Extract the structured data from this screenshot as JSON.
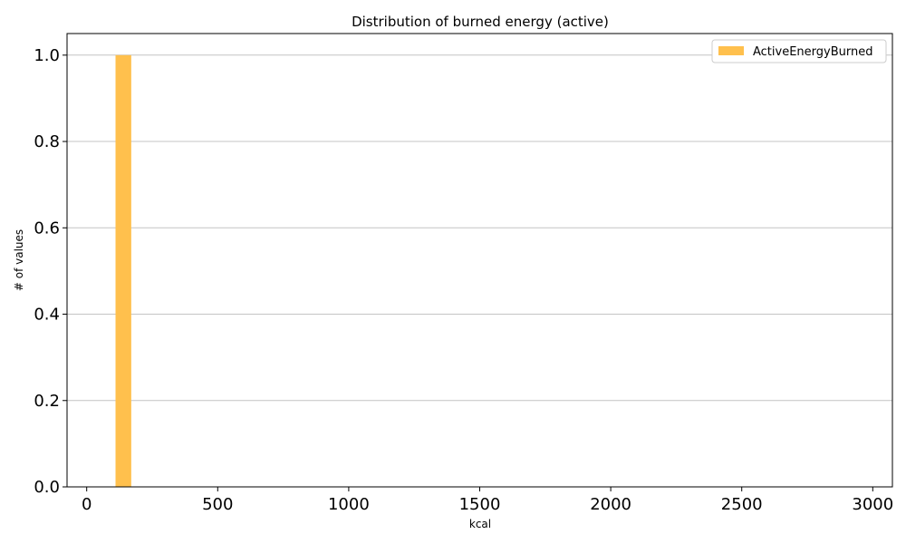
{
  "chart_data": {
    "type": "bar",
    "title": "Distribution of burned energy (active)",
    "xlabel": "kcal",
    "ylabel": "# of values",
    "xlim": [
      -75,
      3075
    ],
    "ylim": [
      0,
      1.05
    ],
    "xticks": [
      "0",
      "500",
      "1000",
      "1500",
      "2000",
      "2500",
      "3000"
    ],
    "xtick_values": [
      0,
      500,
      1000,
      1500,
      2000,
      2500,
      3000
    ],
    "yticks": [
      "0.0",
      "0.2",
      "0.4",
      "0.6",
      "0.8",
      "1.0"
    ],
    "ytick_values": [
      0,
      0.2,
      0.4,
      0.6,
      0.8,
      1.0
    ],
    "grid": "y",
    "legend_position": "top-right",
    "series": [
      {
        "name": "ActiveEnergyBurned",
        "color": "#ffc04d",
        "bins": [
          {
            "x0": 110,
            "x1": 170,
            "value": 1
          }
        ]
      }
    ]
  }
}
